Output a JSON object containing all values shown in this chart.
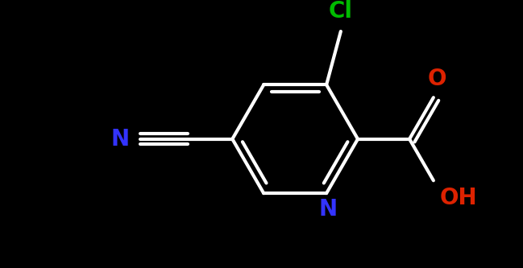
{
  "background_color": "#000000",
  "bond_color": "#ffffff",
  "bond_width": 3.0,
  "atom_labels": {
    "Cl": {
      "text": "Cl",
      "color": "#00bb00",
      "fontsize": 20,
      "fontweight": "bold"
    },
    "O_carbonyl": {
      "text": "O",
      "color": "#dd2200",
      "fontsize": 20,
      "fontweight": "bold"
    },
    "O_hydroxyl": {
      "text": "OH",
      "color": "#dd2200",
      "fontsize": 20,
      "fontweight": "bold"
    },
    "N_ring": {
      "text": "N",
      "color": "#3333ff",
      "fontsize": 20,
      "fontweight": "bold"
    },
    "N_cyano": {
      "text": "N",
      "color": "#3333ff",
      "fontsize": 20,
      "fontweight": "bold"
    }
  },
  "figsize": [
    6.49,
    3.33
  ],
  "dpi": 100
}
